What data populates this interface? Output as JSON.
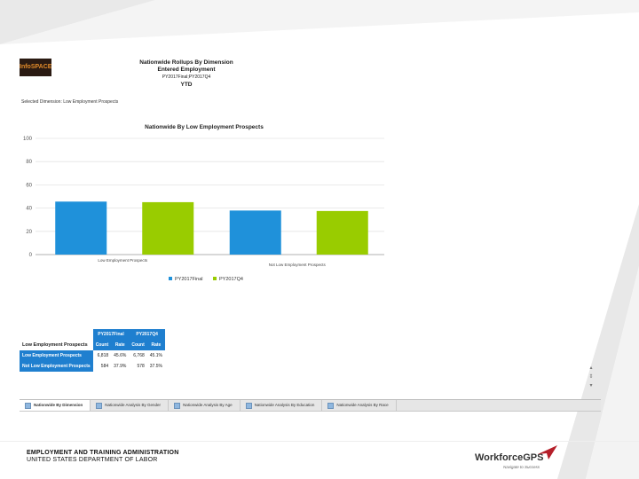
{
  "header": {
    "logo_text": "InfoSPACE",
    "title": "Nationwide Rollups By Dimension",
    "subtitle": "Entered Employment",
    "periods": "PY2017Final;PY2017Q4",
    "scope": "YTD"
  },
  "selected_dimension": "Selected Dimension: Low Employment Prospects",
  "chart_data": {
    "type": "bar",
    "title": "Nationwide By Low Employment Prospects",
    "categories": [
      "Low Employment Prospects",
      "Not Low Employment Prospects"
    ],
    "series": [
      {
        "name": "PY2017Final",
        "values": [
          45.6,
          37.9
        ],
        "color": "#1f91da"
      },
      {
        "name": "PY2017Q4",
        "values": [
          45.1,
          37.5
        ],
        "color": "#99cc00"
      }
    ],
    "ylim": [
      0,
      100
    ],
    "yticks": [
      0,
      20,
      40,
      60,
      80,
      100
    ],
    "grid": true,
    "legend": "bottom"
  },
  "table": {
    "row_header": "Low Employment Prospects",
    "period_headers": [
      "PY2017Final",
      "PY2017Q4"
    ],
    "sub_headers": [
      "Count",
      "Rate",
      "Count",
      "Rate"
    ],
    "rows": [
      {
        "label": "Low Employment Prospects",
        "values": [
          "6,818",
          "45.6%",
          "6,768",
          "45.1%"
        ]
      },
      {
        "label": "Not Low Employment Prospects",
        "values": [
          "584",
          "37.9%",
          "578",
          "37.5%"
        ]
      }
    ]
  },
  "tabs": [
    {
      "label": "Nationwide By Dimension",
      "active": true
    },
    {
      "label": "Nationwide Analysis By Gender",
      "active": false
    },
    {
      "label": "Nationwide Analysis By Age",
      "active": false
    },
    {
      "label": "Nationwide Analysis By Education",
      "active": false
    },
    {
      "label": "Nationwide Analysis By Race",
      "active": false
    }
  ],
  "footer": {
    "org_line1": "EMPLOYMENT AND TRAINING ADMINISTRATION",
    "org_line2": "UNITED STATES DEPARTMENT OF LABOR",
    "brand": "WorkforceGPS",
    "brand_tagline": "Navigate to Success"
  },
  "colors": {
    "blue": "#1f91da",
    "green": "#99cc00",
    "table_blue": "#1f7fcf"
  }
}
